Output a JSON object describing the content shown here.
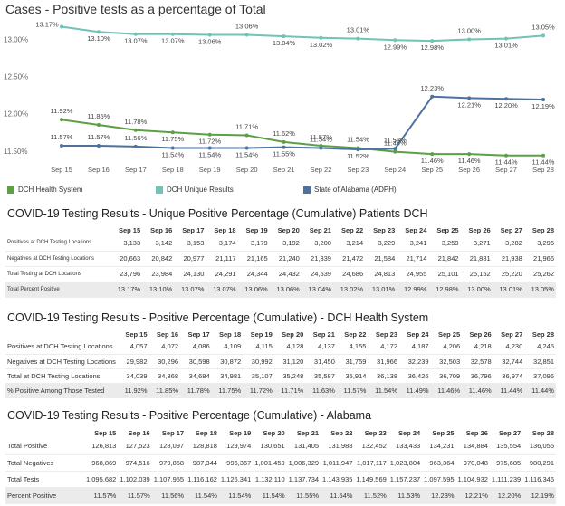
{
  "chart_data": {
    "type": "line",
    "title": "Cases - Positive tests as a percentage of Total",
    "x": [
      "Sep 15",
      "Sep 16",
      "Sep 17",
      "Sep 18",
      "Sep 19",
      "Sep 20",
      "Sep 21",
      "Sep 22",
      "Sep 23",
      "Sep 24",
      "Sep 25",
      "Sep 26",
      "Sep 27",
      "Sep 28"
    ],
    "y_ticks": [
      "13.00%",
      "12.50%",
      "12.00%",
      "11.50%"
    ],
    "ylim": [
      11.4,
      13.2
    ],
    "series": [
      {
        "name": "DCH Health System",
        "color": "#5ba044",
        "values": [
          11.92,
          11.85,
          11.78,
          11.75,
          11.72,
          11.71,
          11.62,
          11.57,
          11.54,
          11.49,
          11.46,
          11.46,
          11.44,
          11.44
        ],
        "labels": [
          "11.92%",
          "11.85%",
          "11.78%",
          "11.75%",
          "11.72%",
          "11.71%",
          "11.62%",
          "11.57%",
          "11.54%",
          "11.49%",
          "11.46%",
          "11.46%",
          "11.44%",
          "11.44%"
        ]
      },
      {
        "name": "DCH Unique Results",
        "color": "#71c3b4",
        "values": [
          13.17,
          13.1,
          13.07,
          13.07,
          13.06,
          13.06,
          13.04,
          13.02,
          13.01,
          12.99,
          12.98,
          13.0,
          13.01,
          13.05
        ],
        "labels": [
          "13.17%",
          "13.10%",
          "13.07%",
          "13.07%",
          "13.06%",
          "13.06%",
          "13.04%",
          "13.02%",
          "13.01%",
          "12.99%",
          "12.98%",
          "13.00%",
          "13.01%",
          "13.05%"
        ]
      },
      {
        "name": "State of Alabama (ADPH)",
        "color": "#4d72a0",
        "values": [
          11.57,
          11.57,
          11.56,
          11.54,
          11.54,
          11.54,
          11.55,
          11.54,
          11.52,
          11.53,
          12.23,
          12.21,
          12.2,
          12.19
        ],
        "labels": [
          "11.57%",
          "11.57%",
          "11.56%",
          "11.54%",
          "11.54%",
          "11.54%",
          "11.55%",
          "11.54%",
          "11.52%",
          "11.53%",
          "12.23%",
          "12.21%",
          "12.20%",
          "12.19%"
        ]
      }
    ]
  },
  "tables": [
    {
      "title": "COVID-19 Testing Results - Unique Positive Percentage (Cumulative) Patients DCH",
      "headers": [
        "Sep 15",
        "Sep 16",
        "Sep 17",
        "Sep 18",
        "Sep 19",
        "Sep 20",
        "Sep 21",
        "Sep 22",
        "Sep 23",
        "Sep 24",
        "Sep 25",
        "Sep 26",
        "Sep 27",
        "Sep 28"
      ],
      "rows": [
        {
          "label": "Positives at DCH Testing Locations",
          "values": [
            "3,133",
            "3,142",
            "3,153",
            "3,174",
            "3,179",
            "3,192",
            "3,200",
            "3,214",
            "3,229",
            "3,241",
            "3,259",
            "3,271",
            "3,282",
            "3,296"
          ]
        },
        {
          "label": "Negatives at DCH Testing Locations",
          "values": [
            "20,663",
            "20,842",
            "20,977",
            "21,117",
            "21,165",
            "21,240",
            "21,339",
            "21,472",
            "21,584",
            "21,714",
            "21,842",
            "21,881",
            "21,938",
            "21,966"
          ]
        },
        {
          "label": "Total Testing at DCH Locations",
          "values": [
            "23,796",
            "23,984",
            "24,130",
            "24,291",
            "24,344",
            "24,432",
            "24,539",
            "24,686",
            "24,813",
            "24,955",
            "25,101",
            "25,152",
            "25,220",
            "25,262"
          ]
        },
        {
          "label": "Total Percent Positive",
          "values": [
            "13.17%",
            "13.10%",
            "13.07%",
            "13.07%",
            "13.06%",
            "13.06%",
            "13.04%",
            "13.02%",
            "13.01%",
            "12.99%",
            "12.98%",
            "13.00%",
            "13.01%",
            "13.05%"
          ]
        }
      ]
    },
    {
      "title": "COVID-19 Testing Results - Positive Percentage (Cumulative) - DCH Health System",
      "headers": [
        "Sep 15",
        "Sep 16",
        "Sep 17",
        "Sep 18",
        "Sep 19",
        "Sep 20",
        "Sep 21",
        "Sep 22",
        "Sep 23",
        "Sep 24",
        "Sep 25",
        "Sep 26",
        "Sep 27",
        "Sep 28"
      ],
      "rows": [
        {
          "label": "Positives at DCH Testing Locations",
          "values": [
            "4,057",
            "4,072",
            "4,086",
            "4,109",
            "4,115",
            "4,128",
            "4,137",
            "4,155",
            "4,172",
            "4,187",
            "4,206",
            "4,218",
            "4,230",
            "4,245"
          ]
        },
        {
          "label": "Negatives at DCH Testing Locations",
          "values": [
            "29,982",
            "30,296",
            "30,598",
            "30,872",
            "30,992",
            "31,120",
            "31,450",
            "31,759",
            "31,966",
            "32,239",
            "32,503",
            "32,578",
            "32,744",
            "32,851"
          ]
        },
        {
          "label": "Total at DCH Testing Locations",
          "values": [
            "34,039",
            "34,368",
            "34,684",
            "34,981",
            "35,107",
            "35,248",
            "35,587",
            "35,914",
            "36,138",
            "36,426",
            "36,709",
            "36,796",
            "36,974",
            "37,096"
          ]
        },
        {
          "label": "% Positive Among Those Tested",
          "values": [
            "11.92%",
            "11.85%",
            "11.78%",
            "11.75%",
            "11.72%",
            "11.71%",
            "11.63%",
            "11.57%",
            "11.54%",
            "11.49%",
            "11.46%",
            "11.46%",
            "11.44%",
            "11.44%"
          ]
        }
      ]
    },
    {
      "title": "COVID-19 Testing Results - Positive Percentage (Cumulative) - Alabama",
      "headers": [
        "Sep 15",
        "Sep 16",
        "Sep 17",
        "Sep 18",
        "Sep 19",
        "Sep 20",
        "Sep 21",
        "Sep 22",
        "Sep 23",
        "Sep 24",
        "Sep 25",
        "Sep 26",
        "Sep 27",
        "Sep 28"
      ],
      "rows": [
        {
          "label": "Total Positive",
          "values": [
            "126,813",
            "127,523",
            "128,097",
            "128,818",
            "129,974",
            "130,651",
            "131,405",
            "131,988",
            "132,452",
            "133,433",
            "134,231",
            "134,884",
            "135,554",
            "136,055"
          ]
        },
        {
          "label": "Total Negatives",
          "values": [
            "968,869",
            "974,516",
            "979,858",
            "987,344",
            "996,367",
            "1,001,459",
            "1,006,329",
            "1,011,947",
            "1,017,117",
            "1,023,804",
            "963,364",
            "970,048",
            "975,685",
            "980,291"
          ]
        },
        {
          "label": "Total Tests",
          "values": [
            "1,095,682",
            "1,102,039",
            "1,107,955",
            "1,116,162",
            "1,126,341",
            "1,132,110",
            "1,137,734",
            "1,143,935",
            "1,149,569",
            "1,157,237",
            "1,097,595",
            "1,104,932",
            "1,111,239",
            "1,116,346"
          ]
        },
        {
          "label": "Percent Positive",
          "values": [
            "11.57%",
            "11.57%",
            "11.56%",
            "11.54%",
            "11.54%",
            "11.54%",
            "11.55%",
            "11.54%",
            "11.52%",
            "11.53%",
            "12.23%",
            "12.21%",
            "12.20%",
            "12.19%"
          ]
        }
      ]
    }
  ]
}
